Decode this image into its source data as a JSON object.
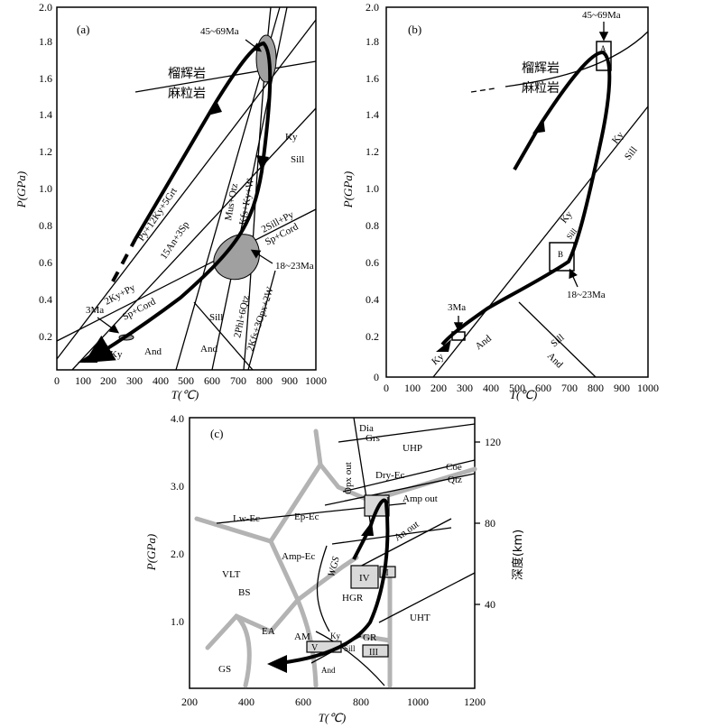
{
  "panel_a": {
    "letter": "(a)",
    "xlabel": "T(℃)",
    "ylabel": "P(GPa)",
    "xticks": [
      "0",
      "100",
      "200",
      "300",
      "400",
      "500",
      "600",
      "700",
      "800",
      "900",
      "1000"
    ],
    "yticks": [
      "2.0",
      "1.8",
      "1.6",
      "1.4",
      "1.2",
      "1.0",
      "0.8",
      "0.6",
      "0.4",
      "0.2"
    ],
    "ann_45": "45~69Ma",
    "ann_18": "18~23Ma",
    "ann_3": "3Ma",
    "rock_upper": "榴辉岩",
    "rock_lower": "麻粒岩",
    "rxn1": "Py+12Ky+5Grt",
    "rxn1b": "15An+3Sp",
    "rxn2": "2Ky+Py",
    "rxn2b": "Sp+Cord",
    "rxn3": "2Sill+Py",
    "rxn3b": "Sp+Cord",
    "rxn4": "Mus+Qtz",
    "rxn4b": "Kfs+Ky+W",
    "rxn5": "2Phl+6Qtz",
    "rxn5b": "2Kfs+3Opx+2W",
    "ky": "Ky",
    "sill": "Sill",
    "and1": "And",
    "and2": "And",
    "ky_low": "Ky",
    "sill_low": "Sill"
  },
  "panel_b": {
    "letter": "(b)",
    "xlabel": "T(℃)",
    "ylabel": "P(GPa)",
    "xticks": [
      "0",
      "100",
      "200",
      "300",
      "400",
      "500",
      "600",
      "700",
      "800",
      "900",
      "1000"
    ],
    "yticks": [
      "0",
      "0.2",
      "0.4",
      "0.6",
      "0.8",
      "1.0",
      "1.2",
      "1.4",
      "1.6",
      "1.8",
      "2.0"
    ],
    "ann_45": "45~69Ma",
    "ann_18": "18~23Ma",
    "ann_3": "3Ma",
    "rock_upper": "榴辉岩",
    "rock_lower": "麻粒岩",
    "box_a": "A",
    "box_b": "B",
    "ky": "Ky",
    "sill": "Sill",
    "ky_mid": "Ky",
    "sill_mid": "Sill",
    "and": "And",
    "and2": "And",
    "sill_low": "Sill",
    "ky_low": "Ky"
  },
  "panel_c": {
    "letter": "(c)",
    "xlabel": "T(℃)",
    "ylabel": "P(GPa)",
    "y2label": "深度(km)",
    "xticks": [
      "200",
      "400",
      "600",
      "800",
      "1000",
      "1200"
    ],
    "yticks": [
      "4.0",
      "3.0",
      "2.0",
      "1.0"
    ],
    "y2ticks": [
      "120",
      "80",
      "40"
    ],
    "fields": {
      "dia": "Dia",
      "grs": "Grs",
      "uhp": "UHP",
      "opx_out": "Opx out",
      "dry_ec": "Dry-Ec",
      "coe": "Coe",
      "qtz": "Qtz",
      "amp_out": "Amp out",
      "lw_ec": "Lw-Ec",
      "ep_ec": "Ep-Ec",
      "an_out": "An out",
      "amp_ec": "Amp-Ec",
      "wgs": "WGS",
      "vlt": "VLT",
      "bs": "BS",
      "hgr": "HGR",
      "uht": "UHT",
      "ea": "EA",
      "am": "AM",
      "gr": "GR",
      "ky": "Ky",
      "sill": "Sill",
      "and": "And",
      "gs": "GS"
    },
    "boxes": [
      "I",
      "II",
      "III",
      "IV",
      "V"
    ]
  }
}
